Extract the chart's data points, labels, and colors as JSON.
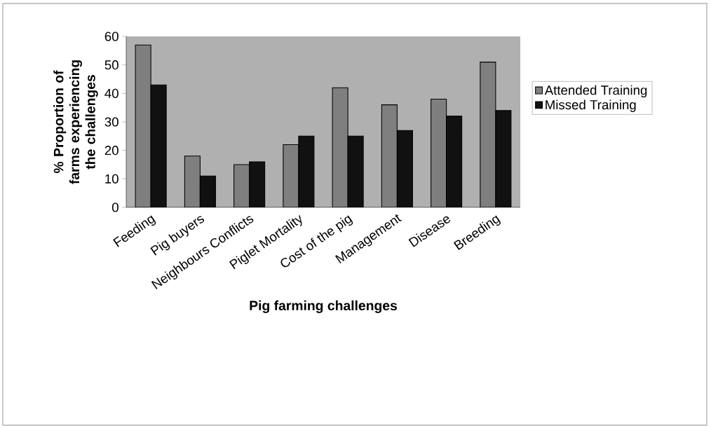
{
  "chart_data": {
    "type": "bar",
    "xlabel": "Pig farming challenges",
    "ylabel": "% Proportion of farms experiencing the challenges",
    "categories": [
      "Feeding",
      "Pig buyers",
      "Neighbours Conflicts",
      "Piglet Mortality",
      "Cost of the pig",
      "Management",
      "Disease",
      "Breeding"
    ],
    "series": [
      {
        "name": "Attended Training",
        "color": "#7f7f7f",
        "values": [
          57,
          18,
          15,
          22,
          42,
          36,
          38,
          51
        ]
      },
      {
        "name": "Missed Training",
        "color": "#111111",
        "values": [
          43,
          11,
          16,
          25,
          25,
          27,
          32,
          34
        ]
      }
    ],
    "ylim": [
      0,
      60
    ],
    "yticks": [
      0,
      10,
      20,
      30,
      40,
      50,
      60
    ],
    "grid": false,
    "legend": "right"
  }
}
